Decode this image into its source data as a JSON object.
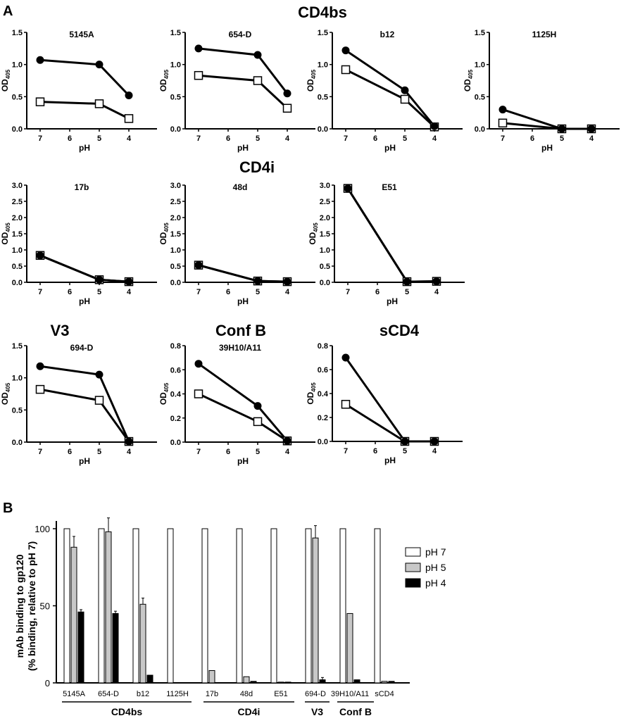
{
  "panel_labels": {
    "a": "A",
    "b": "B"
  },
  "group_headings": {
    "cd4bs": "CD4bs",
    "cd4i": "CD4i",
    "v3": "V3",
    "confb": "Conf B",
    "scd4": "sCD4"
  },
  "axes_text": {
    "xlabel": "pH",
    "ylabel_main": "OD",
    "ylabel_sub": "405"
  },
  "colors": {
    "line": "#000000",
    "filled_marker": "#000000",
    "open_marker": "#ffffff",
    "ph7": "#ffffff",
    "ph5": "#c8c8c8",
    "ph4": "#000000"
  },
  "chart_data": [
    {
      "type": "line",
      "title": "5145A",
      "xlabel": "pH",
      "ylabel": "OD405",
      "x": [
        7,
        5,
        4
      ],
      "xticks": [
        7,
        6,
        5,
        4
      ],
      "yticks": [
        "0.0",
        "0.5",
        "1.0",
        "1.5"
      ],
      "ylim": [
        0,
        1.5
      ],
      "series": [
        {
          "marker": "filled-circle",
          "values": [
            1.07,
            1.0,
            0.52
          ]
        },
        {
          "marker": "open-square",
          "values": [
            0.42,
            0.39,
            0.16
          ]
        }
      ]
    },
    {
      "type": "line",
      "title": "654-D",
      "xlabel": "pH",
      "ylabel": "OD405",
      "x": [
        7,
        5,
        4
      ],
      "xticks": [
        7,
        6,
        5,
        4
      ],
      "yticks": [
        "0.0",
        "0.5",
        "1.0",
        "1.5"
      ],
      "ylim": [
        0,
        1.5
      ],
      "series": [
        {
          "marker": "filled-circle",
          "values": [
            1.25,
            1.15,
            0.55
          ]
        },
        {
          "marker": "open-square",
          "values": [
            0.83,
            0.75,
            0.32
          ]
        }
      ]
    },
    {
      "type": "line",
      "title": "b12",
      "xlabel": "pH",
      "ylabel": "OD405",
      "x": [
        7,
        5,
        4
      ],
      "xticks": [
        7,
        6,
        5,
        4
      ],
      "yticks": [
        "0.0",
        "0.5",
        "1.0",
        "1.5"
      ],
      "ylim": [
        0,
        1.5
      ],
      "series": [
        {
          "marker": "filled-circle",
          "values": [
            1.22,
            0.6,
            0.04
          ]
        },
        {
          "marker": "open-square",
          "values": [
            0.92,
            0.46,
            0.03
          ]
        }
      ]
    },
    {
      "type": "line",
      "title": "1125H",
      "xlabel": "pH",
      "ylabel": "OD405",
      "x": [
        7,
        5,
        4
      ],
      "xticks": [
        7,
        6,
        5,
        4
      ],
      "yticks": [
        "0.0",
        "0.5",
        "1.0",
        "1.5"
      ],
      "ylim": [
        0,
        1.5
      ],
      "series": [
        {
          "marker": "filled-circle",
          "values": [
            0.3,
            0.0,
            0.0
          ]
        },
        {
          "marker": "open-square",
          "values": [
            0.09,
            0.0,
            0.0
          ]
        }
      ]
    },
    {
      "type": "line",
      "title": "17b",
      "xlabel": "pH",
      "ylabel": "OD405",
      "x": [
        7,
        5,
        4
      ],
      "xticks": [
        7,
        6,
        5,
        4
      ],
      "yticks": [
        "0.0",
        "0.5",
        "1.0",
        "1.5",
        "2.0",
        "2.5",
        "3.0"
      ],
      "ylim": [
        0,
        3.0
      ],
      "series": [
        {
          "marker": "filled-circle",
          "values": [
            0.83,
            0.08,
            0.02
          ]
        },
        {
          "marker": "open-square",
          "values": [
            0.83,
            0.08,
            0.02
          ]
        }
      ]
    },
    {
      "type": "line",
      "title": "48d",
      "xlabel": "pH",
      "ylabel": "OD405",
      "x": [
        7,
        5,
        4
      ],
      "xticks": [
        7,
        6,
        5,
        4
      ],
      "yticks": [
        "0.0",
        "0.5",
        "1.0",
        "1.5",
        "2.0",
        "2.5",
        "3.0"
      ],
      "ylim": [
        0,
        3.0
      ],
      "series": [
        {
          "marker": "filled-circle",
          "values": [
            0.53,
            0.04,
            0.02
          ]
        },
        {
          "marker": "open-square",
          "values": [
            0.53,
            0.04,
            0.02
          ]
        }
      ]
    },
    {
      "type": "line",
      "title": "E51",
      "xlabel": "pH",
      "ylabel": "OD405",
      "x": [
        7,
        5,
        4
      ],
      "xticks": [
        7,
        6,
        5,
        4
      ],
      "yticks": [
        "0.0",
        "0.5",
        "1.0",
        "1.5",
        "2.0",
        "2.5",
        "3.0"
      ],
      "ylim": [
        0,
        3.0
      ],
      "series": [
        {
          "marker": "filled-circle",
          "values": [
            2.9,
            0.02,
            0.03
          ]
        },
        {
          "marker": "open-square",
          "values": [
            2.9,
            0.02,
            0.03
          ]
        }
      ]
    },
    {
      "type": "line",
      "title": "694-D",
      "xlabel": "pH",
      "ylabel": "OD405",
      "x": [
        7,
        5,
        4
      ],
      "xticks": [
        7,
        6,
        5,
        4
      ],
      "yticks": [
        "0.0",
        "0.5",
        "1.0",
        "1.5"
      ],
      "ylim": [
        0,
        1.5
      ],
      "series": [
        {
          "marker": "filled-circle",
          "values": [
            1.18,
            1.05,
            0.01
          ]
        },
        {
          "marker": "open-square",
          "values": [
            0.82,
            0.65,
            0.01
          ]
        }
      ]
    },
    {
      "type": "line",
      "title": "39H10/A11",
      "xlabel": "pH",
      "ylabel": "OD405",
      "x": [
        7,
        5,
        4
      ],
      "xticks": [
        7,
        6,
        5,
        4
      ],
      "yticks": [
        "0.0",
        "0.2",
        "0.4",
        "0.6",
        "0.8"
      ],
      "ylim": [
        0,
        0.8
      ],
      "series": [
        {
          "marker": "filled-circle",
          "values": [
            0.65,
            0.3,
            0.01
          ]
        },
        {
          "marker": "open-square",
          "values": [
            0.4,
            0.17,
            0.01
          ]
        }
      ]
    },
    {
      "type": "line",
      "title": "",
      "xlabel": "pH",
      "ylabel": "OD405",
      "x": [
        7,
        5,
        4
      ],
      "xticks": [
        7,
        6,
        5,
        4
      ],
      "yticks": [
        "0.0",
        "0.2",
        "0.4",
        "0.6",
        "0.8"
      ],
      "ylim": [
        0,
        0.8
      ],
      "series": [
        {
          "marker": "filled-circle",
          "values": [
            0.7,
            0.0,
            0.0
          ]
        },
        {
          "marker": "open-square",
          "values": [
            0.31,
            0.0,
            0.0
          ]
        }
      ]
    },
    {
      "type": "bar",
      "ylabel": [
        "mAb binding to gp120",
        "(% binding, relative to pH 7)"
      ],
      "yticks": [
        "0",
        "50",
        "100"
      ],
      "ylim": [
        0,
        100
      ],
      "categories": [
        "5145A",
        "654-D",
        "b12",
        "1125H",
        "17b",
        "48d",
        "E51",
        "694-D",
        "39H10/A11",
        "sCD4"
      ],
      "groups": [
        {
          "label": "CD4bs",
          "categories": [
            "5145A",
            "654-D",
            "b12",
            "1125H"
          ]
        },
        {
          "label": "CD4i",
          "categories": [
            "17b",
            "48d",
            "E51"
          ]
        },
        {
          "label": "V3",
          "categories": [
            "694-D"
          ]
        },
        {
          "label": "Conf B",
          "categories": [
            "39H10/A11"
          ]
        }
      ],
      "series": [
        {
          "name": "pH 7",
          "values": [
            100,
            100,
            100,
            100,
            100,
            100,
            100,
            100,
            100,
            100
          ],
          "errors": [
            0,
            0,
            0,
            0,
            0,
            0,
            0,
            0,
            0,
            0
          ]
        },
        {
          "name": "pH 5",
          "values": [
            88,
            98,
            51,
            0,
            8,
            4,
            0.5,
            94,
            45,
            1
          ],
          "errors": [
            7,
            9,
            4,
            0,
            0,
            0,
            0,
            8,
            0,
            0
          ]
        },
        {
          "name": "pH 4",
          "values": [
            46,
            45,
            5,
            0,
            0,
            1,
            0.5,
            2,
            2,
            1
          ],
          "errors": [
            1.5,
            1.5,
            0,
            0,
            0,
            0,
            0,
            1.5,
            0,
            0
          ]
        }
      ],
      "legend": "right"
    }
  ]
}
